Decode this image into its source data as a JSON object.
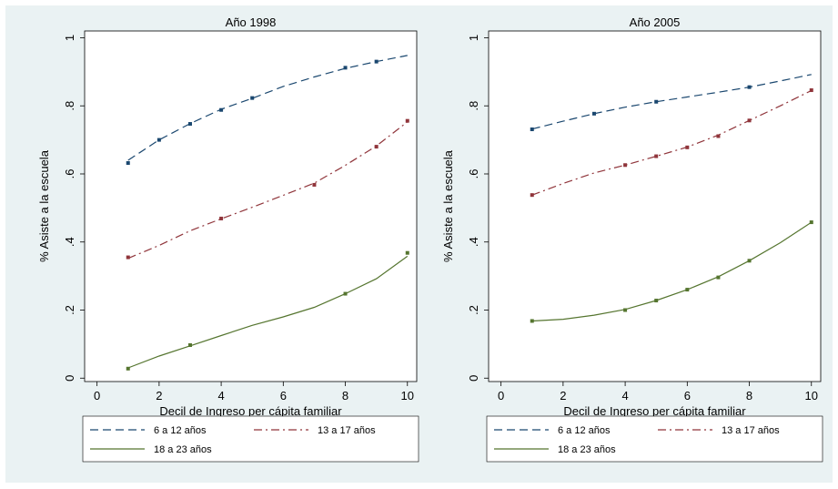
{
  "figure": {
    "background": "#eaf2f3",
    "plot_background": "#ffffff"
  },
  "chart_data": [
    {
      "type": "line",
      "title": "Año 1998",
      "xlabel": "Decil de Ingreso per cápita familiar",
      "ylabel": "% Asiste a la escuela",
      "xlim": [
        -0.4,
        10.3
      ],
      "ylim": [
        -0.01,
        1.02
      ],
      "x_ticks": [
        "0",
        "2",
        "4",
        "6",
        "8",
        "10"
      ],
      "y_ticks": [
        "0",
        ".2",
        ".4",
        ".6",
        ".8",
        "1"
      ],
      "grid": false,
      "legend_position": "bottom",
      "x": [
        1,
        2,
        3,
        4,
        5,
        6,
        7,
        8,
        9,
        10
      ],
      "series": [
        {
          "name": "6 a 12 años",
          "color": "#1a476f",
          "dash": "dash",
          "values": [
            0.64,
            0.7,
            0.748,
            0.79,
            0.822,
            0.857,
            0.885,
            0.91,
            0.93,
            0.948
          ],
          "markers": [
            0.632,
            0.7,
            0.747,
            0.788,
            0.823,
            null,
            null,
            0.912,
            0.93,
            null
          ]
        },
        {
          "name": "13 a 17 años",
          "color": "#90353b",
          "dash": "dash-dot",
          "values": [
            0.352,
            0.39,
            0.433,
            0.468,
            0.502,
            0.537,
            0.573,
            0.625,
            0.682,
            0.753
          ],
          "markers": [
            0.355,
            null,
            null,
            0.469,
            null,
            null,
            0.568,
            null,
            0.68,
            0.756
          ]
        },
        {
          "name": "18 a 23 años",
          "color": "#55752f",
          "dash": "solid",
          "values": [
            0.03,
            0.065,
            0.095,
            0.125,
            0.155,
            0.18,
            0.208,
            0.248,
            0.292,
            0.358
          ],
          "markers": [
            0.028,
            null,
            0.097,
            null,
            null,
            null,
            null,
            0.248,
            null,
            0.368
          ]
        }
      ]
    },
    {
      "type": "line",
      "title": "Año 2005",
      "xlabel": "Decil de Ingreso per cápita familiar",
      "ylabel": "% Asiste a la escuela",
      "xlim": [
        -0.4,
        10.3
      ],
      "ylim": [
        -0.01,
        1.02
      ],
      "x_ticks": [
        "0",
        "2",
        "4",
        "6",
        "8",
        "10"
      ],
      "y_ticks": [
        "0",
        ".2",
        ".4",
        ".6",
        ".8",
        "1"
      ],
      "grid": false,
      "legend_position": "bottom",
      "x": [
        1,
        2,
        3,
        4,
        5,
        6,
        7,
        8,
        9,
        10
      ],
      "series": [
        {
          "name": "6 a 12 años",
          "color": "#1a476f",
          "dash": "dash",
          "values": [
            0.732,
            0.755,
            0.777,
            0.796,
            0.812,
            0.826,
            0.84,
            0.855,
            0.873,
            0.892
          ],
          "markers": [
            0.731,
            null,
            0.777,
            null,
            0.812,
            null,
            null,
            0.855,
            null,
            null
          ]
        },
        {
          "name": "13 a 17 años",
          "color": "#90353b",
          "dash": "dash-dot",
          "values": [
            0.538,
            0.572,
            0.603,
            0.626,
            0.652,
            0.679,
            0.714,
            0.757,
            0.8,
            0.845
          ],
          "markers": [
            0.538,
            null,
            null,
            0.626,
            0.652,
            0.678,
            0.711,
            0.757,
            null,
            0.846
          ]
        },
        {
          "name": "18 a 23 años",
          "color": "#55752f",
          "dash": "solid",
          "values": [
            0.168,
            0.173,
            0.185,
            0.202,
            0.228,
            0.26,
            0.298,
            0.345,
            0.398,
            0.458
          ],
          "markers": [
            0.168,
            null,
            null,
            0.2,
            0.228,
            0.26,
            0.296,
            0.345,
            null,
            0.458
          ]
        }
      ]
    }
  ]
}
